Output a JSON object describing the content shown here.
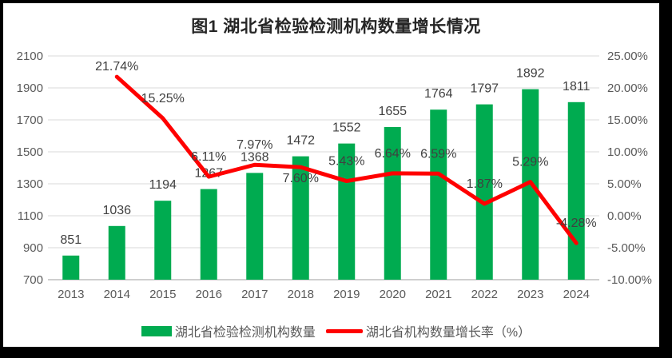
{
  "chart_data": {
    "type": "bar+line",
    "title": "图1 湖北省检验检测机构数量增长情况",
    "categories": [
      "2013",
      "2014",
      "2015",
      "2016",
      "2017",
      "2018",
      "2019",
      "2020",
      "2021",
      "2022",
      "2023",
      "2024"
    ],
    "series": [
      {
        "name": "湖北省检验检测机构数量",
        "type": "bar",
        "color": "#00AB50",
        "axis": "left",
        "values": [
          851,
          1036,
          1194,
          1267,
          1368,
          1472,
          1552,
          1655,
          1764,
          1797,
          1892,
          1811
        ],
        "labels": [
          "851",
          "1036",
          "1194",
          "1267",
          "1368",
          "1472",
          "1552",
          "1655",
          "1764",
          "1797",
          "1892",
          "1811"
        ]
      },
      {
        "name": "湖北省机构数量增长率（%）",
        "type": "line",
        "color": "#FF0000",
        "axis": "right",
        "values": [
          null,
          21.74,
          15.25,
          6.11,
          7.97,
          7.6,
          5.43,
          6.64,
          6.59,
          1.87,
          5.29,
          -4.28
        ],
        "labels": [
          "",
          "21.74%",
          "15.25%",
          "6.11%",
          "7.97%",
          "7.60%",
          "5.43%",
          "6.64%",
          "6.59%",
          "1.87%",
          "5.29%",
          "-4.28%"
        ]
      }
    ],
    "left_axis": {
      "min": 700,
      "max": 2100,
      "step": 200,
      "ticks": [
        "700",
        "900",
        "1100",
        "1300",
        "1500",
        "1700",
        "1900",
        "2100"
      ]
    },
    "right_axis": {
      "min": -10,
      "max": 25,
      "step": 5,
      "ticks": [
        "-10.00%",
        "-5.00%",
        "0.00%",
        "5.00%",
        "10.00%",
        "15.00%",
        "20.00%",
        "25.00%"
      ]
    },
    "grid": true,
    "legend_position": "bottom",
    "colors": {
      "grid": "#D9D9D9",
      "axis_line": "#BFBFBF",
      "tick_text": "#595959",
      "label_text": "#404040",
      "title_text": "#262626",
      "background": "#FFFFFF",
      "frame": "#000000"
    }
  }
}
